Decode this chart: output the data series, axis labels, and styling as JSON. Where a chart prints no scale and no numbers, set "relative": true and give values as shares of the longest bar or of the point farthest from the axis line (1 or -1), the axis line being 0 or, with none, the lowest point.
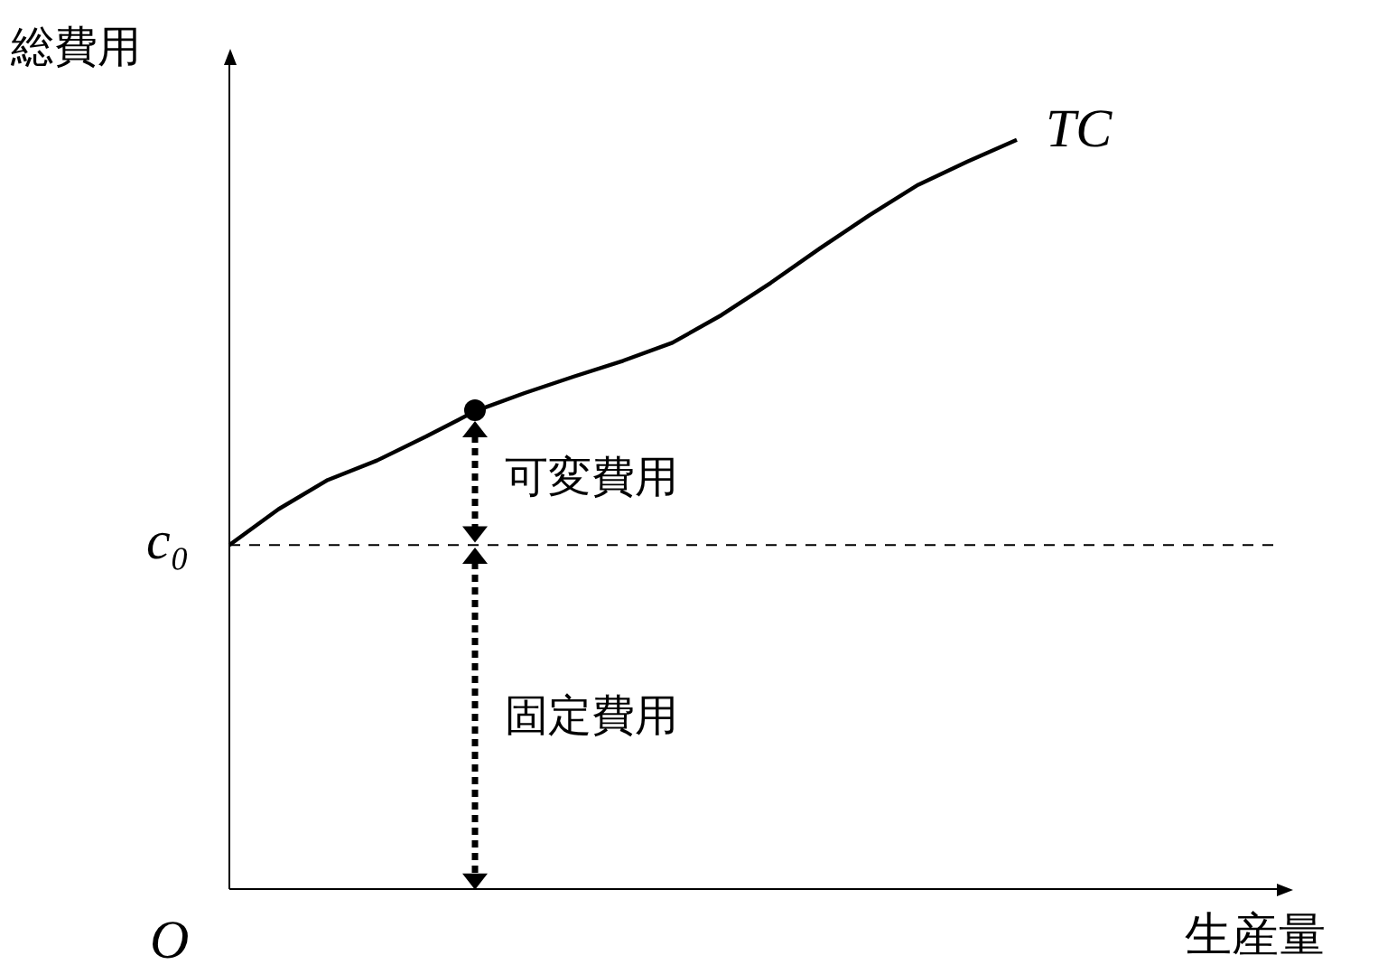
{
  "chart_data": {
    "type": "line",
    "relative": true,
    "xlabel": "生産量",
    "ylabel": "総費用",
    "categories": [
      null,
      null,
      null,
      null,
      null,
      null,
      null,
      null,
      null,
      null,
      null,
      null,
      null,
      null,
      null,
      null,
      null
    ],
    "series": [
      {
        "name": "TC",
        "color": "#000000",
        "marker": "none",
        "values": [
          0.459,
          0.507,
          0.546,
          0.572,
          0.604,
          0.638,
          0.662,
          0.684,
          0.705,
          0.729,
          0.766,
          0.809,
          0.855,
          0.899,
          0.94,
          0.971,
          1
        ]
      }
    ],
    "ref_lines": [
      {
        "axis": "y",
        "value": 0.459,
        "label": "c₀",
        "line_style": "dashed",
        "color": "#000000"
      }
    ],
    "annotations": [
      "可変費用",
      "固定費用",
      "O"
    ],
    "legend": false
  }
}
